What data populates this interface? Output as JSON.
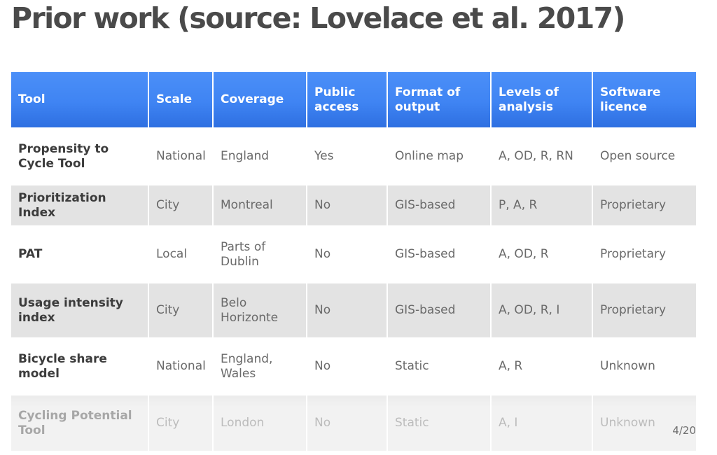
{
  "slide": {
    "title": "Prior work (source: Lovelace et al. 2017)",
    "page_number": "4/20"
  },
  "table": {
    "columns": [
      "Tool",
      "Scale",
      "Coverage",
      "Public access",
      "Format of output",
      "Levels of analysis",
      "Software licence"
    ],
    "rows": [
      [
        "Propensity to Cycle Tool",
        "National",
        "England",
        "Yes",
        "Online map",
        "A, OD, R, RN",
        "Open source"
      ],
      [
        "Prioritization Index",
        "City",
        "Montreal",
        "No",
        "GIS-based",
        "P, A, R",
        "Proprietary"
      ],
      [
        "PAT",
        "Local",
        "Parts of Dublin",
        "No",
        "GIS-based",
        "A, OD, R",
        "Proprietary"
      ],
      [
        "Usage intensity index",
        "City",
        "Belo Horizonte",
        "No",
        "GIS-based",
        "A, OD, R, I",
        "Proprietary"
      ],
      [
        "Bicycle share model",
        "National",
        "England, Wales",
        "No",
        "Static",
        "A, R",
        "Unknown"
      ],
      [
        "Cycling Potential Tool",
        "City",
        "London",
        "No",
        "Static",
        "A, I",
        "Unknown"
      ]
    ]
  },
  "colors": {
    "header_blue": "#3f84f3",
    "row_gray": "#e3e3e3",
    "title_text": "#4a4a4a"
  }
}
